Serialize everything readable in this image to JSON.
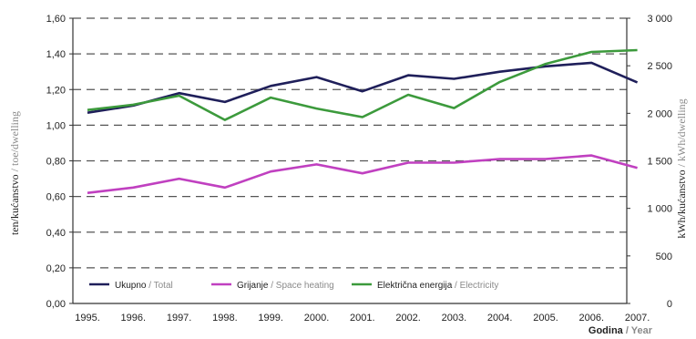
{
  "chart_data": {
    "type": "line",
    "x": [
      "1995.",
      "1996.",
      "1997.",
      "1998.",
      "1999.",
      "2000.",
      "2001.",
      "2002.",
      "2003.",
      "2004.",
      "2005.",
      "2006.",
      "2007."
    ],
    "left_axis": {
      "label_local": "ten/kućanstvo",
      "label_en": " / toe/dwelling",
      "ylim": [
        0,
        1.6
      ],
      "ticks": [
        "0,00",
        "0,20",
        "0,40",
        "0,60",
        "0,80",
        "1,00",
        "1,20",
        "1,40",
        "1,60"
      ]
    },
    "right_axis": {
      "label_local": "kWh/kućanstvo",
      "label_en": " / kWh/dwelling",
      "ylim": [
        0,
        3000
      ],
      "ticks": [
        "0",
        "500",
        "1 000",
        "1 500",
        "2 000",
        "2 500",
        "3 000"
      ]
    },
    "xlabel_local": "Godina",
    "xlabel_en": " / Year",
    "grid": "horizontal dashed",
    "legend_position": "bottom",
    "series": [
      {
        "name_local": "Ukupno",
        "name_en": " / Total",
        "axis": "left",
        "color": "#1f1f5a",
        "values": [
          1.07,
          1.11,
          1.18,
          1.13,
          1.22,
          1.27,
          1.19,
          1.28,
          1.26,
          1.3,
          1.33,
          1.35,
          1.24
        ]
      },
      {
        "name_local": "Grijanje",
        "name_en": " / Space heating",
        "axis": "left",
        "color": "#c040c0",
        "values": [
          0.62,
          0.65,
          0.7,
          0.65,
          0.74,
          0.78,
          0.73,
          0.79,
          0.79,
          0.81,
          0.81,
          0.83,
          0.76
        ]
      },
      {
        "name_local": "Električna energija",
        "name_en": " / Electricity",
        "axis": "right",
        "color": "#3c9a3c",
        "values": [
          2035,
          2090,
          2185,
          1930,
          2165,
          2050,
          1960,
          2195,
          2055,
          2330,
          2520,
          2645,
          2665
        ]
      }
    ]
  }
}
